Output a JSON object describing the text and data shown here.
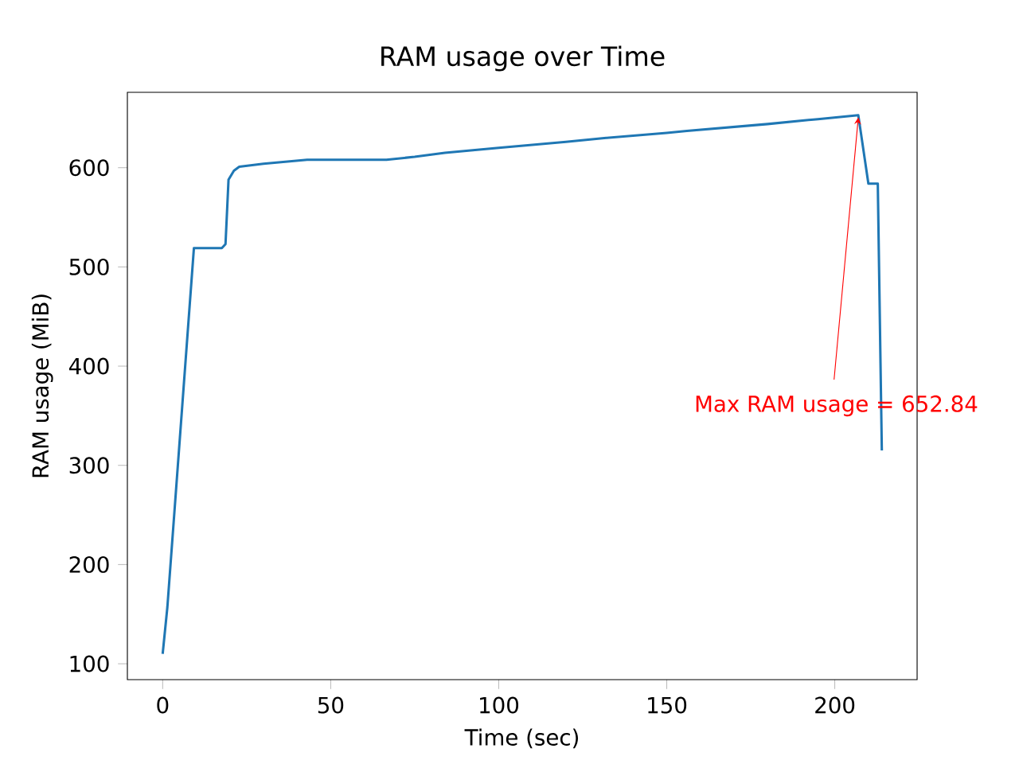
{
  "chart_data": {
    "type": "line",
    "title": "RAM usage over Time",
    "xlabel": "Time (sec)",
    "ylabel": "RAM usage (MiB)",
    "xlim": [
      -10.5,
      224.5
    ],
    "ylim": [
      84,
      676
    ],
    "xticks": [
      0,
      50,
      100,
      150,
      200
    ],
    "yticks": [
      100,
      200,
      300,
      400,
      500,
      600
    ],
    "series": [
      {
        "color": "#1f77b4",
        "x": [
          0,
          1.4,
          9.3,
          17.6,
          18.7,
          19.6,
          21.2,
          22.8,
          30,
          43,
          66.6,
          75,
          84,
          100,
          120,
          132,
          150,
          156,
          180,
          195,
          207,
          210,
          212.8,
          214
        ],
        "values": [
          110,
          157,
          519,
          519,
          523,
          588,
          597,
          601,
          604,
          608,
          608,
          611,
          615,
          620,
          626,
          630,
          635,
          637,
          644,
          649,
          652.84,
          584,
          584,
          315
        ]
      }
    ],
    "annotations": [
      {
        "text": "Max RAM usage = 652.84",
        "x": 207,
        "y": 652.84
      }
    ]
  }
}
